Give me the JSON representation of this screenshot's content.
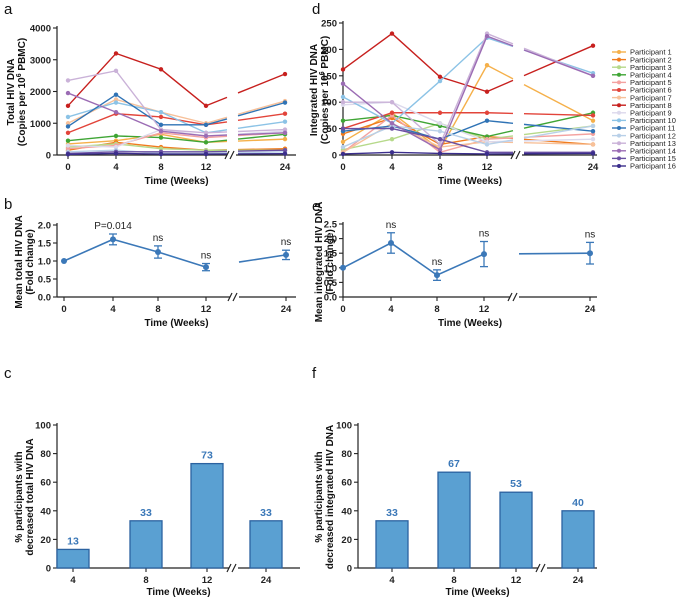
{
  "chart_data": [
    {
      "panel": "a",
      "type": "line",
      "xlabel": "Time (Weeks)",
      "ylabel_lines": [
        "Total HIV DNA",
        "(Copies per 10",
        "6",
        " PBMC)"
      ],
      "x": [
        0,
        4,
        8,
        12,
        24
      ],
      "ylim": [
        0,
        4000
      ],
      "yticks": [
        "0",
        "1000",
        "2000",
        "3000",
        "4000"
      ],
      "xticks": [
        "0",
        "4",
        "8",
        "12",
        "24"
      ],
      "series": [
        {
          "name": "Participant 1",
          "values": [
            350,
            450,
            650,
            400,
            500
          ]
        },
        {
          "name": "Participant 2",
          "values": [
            150,
            400,
            250,
            150,
            200
          ]
        },
        {
          "name": "Participant 3",
          "values": [
            250,
            350,
            200,
            150,
            150
          ]
        },
        {
          "name": "Participant 4",
          "values": [
            450,
            600,
            550,
            400,
            650
          ]
        },
        {
          "name": "Participant 5",
          "values": [
            200,
            300,
            700,
            550,
            700
          ]
        },
        {
          "name": "Participant 6",
          "values": [
            700,
            1300,
            1200,
            950,
            1300
          ]
        },
        {
          "name": "Participant 7",
          "values": [
            1000,
            1750,
            1350,
            1000,
            1700
          ]
        },
        {
          "name": "Participant 8",
          "values": [
            1550,
            3200,
            2700,
            1550,
            2550
          ]
        },
        {
          "name": "Participant 9",
          "values": [
            300,
            250,
            800,
            600,
            750
          ]
        },
        {
          "name": "Participant 10",
          "values": [
            1200,
            1650,
            1350,
            700,
            1050
          ]
        },
        {
          "name": "Participant 11",
          "values": [
            900,
            1900,
            950,
            950,
            1650
          ]
        },
        {
          "name": "Participant 12",
          "values": [
            100,
            150,
            50,
            50,
            100
          ]
        },
        {
          "name": "Participant 13",
          "values": [
            2350,
            2650,
            800,
            700,
            800
          ]
        },
        {
          "name": "Participant 14",
          "values": [
            1950,
            1350,
            750,
            600,
            700
          ]
        },
        {
          "name": "Participant 15",
          "values": [
            50,
            100,
            100,
            100,
            150
          ]
        },
        {
          "name": "Participant 16",
          "values": [
            20,
            50,
            30,
            30,
            40
          ]
        }
      ]
    },
    {
      "panel": "d",
      "type": "line",
      "xlabel": "Time (Weeks)",
      "ylabel_lines": [
        "Integrated HIV DNA",
        "(Copies per 10",
        "6",
        " PBMC)"
      ],
      "x": [
        0,
        4,
        8,
        12,
        24
      ],
      "ylim": [
        0,
        250
      ],
      "yticks": [
        "0",
        "50",
        "100",
        "150",
        "200",
        "250"
      ],
      "xticks": [
        "0",
        "4",
        "8",
        "12",
        "24"
      ],
      "series": [
        {
          "name": "Participant 1",
          "values": [
            25,
            80,
            10,
            170,
            65
          ]
        },
        {
          "name": "Participant 2",
          "values": [
            40,
            70,
            20,
            35,
            20
          ]
        },
        {
          "name": "Participant 3",
          "values": [
            10,
            30,
            60,
            30,
            55
          ]
        },
        {
          "name": "Participant 4",
          "values": [
            65,
            75,
            55,
            35,
            80
          ]
        },
        {
          "name": "Participant 5",
          "values": [
            5,
            75,
            5,
            30,
            40
          ]
        },
        {
          "name": "Participant 6",
          "values": [
            50,
            80,
            80,
            80,
            75
          ]
        },
        {
          "name": "Participant 7",
          "values": [
            5,
            60,
            15,
            25,
            20
          ]
        },
        {
          "name": "Participant 8",
          "values": [
            162,
            230,
            148,
            120,
            207
          ]
        },
        {
          "name": "Participant 9",
          "values": [
            95,
            100,
            60,
            25,
            30
          ]
        },
        {
          "name": "Participant 10",
          "values": [
            110,
            60,
            140,
            222,
            155
          ]
        },
        {
          "name": "Participant 11",
          "values": [
            45,
            55,
            30,
            65,
            45
          ]
        },
        {
          "name": "Participant 12",
          "values": [
            15,
            55,
            45,
            20,
            55
          ]
        },
        {
          "name": "Participant 13",
          "values": [
            100,
            100,
            20,
            230,
            150
          ]
        },
        {
          "name": "Participant 14",
          "values": [
            135,
            60,
            10,
            225,
            150
          ]
        },
        {
          "name": "Participant 15",
          "values": [
            50,
            50,
            30,
            5,
            5
          ]
        },
        {
          "name": "Participant 16",
          "values": [
            2,
            5,
            3,
            2,
            3
          ]
        }
      ]
    },
    {
      "panel": "b",
      "type": "line",
      "xlabel": "Time (Weeks)",
      "ylabel_lines": [
        "Mean total HIV DNA",
        "(Fold change)"
      ],
      "x": [
        0,
        4,
        8,
        12,
        24
      ],
      "ylim": [
        0,
        2.0
      ],
      "yticks": [
        "0.0",
        "0.5",
        "1.0",
        "1.5",
        "2.0"
      ],
      "xticks": [
        "0",
        "4",
        "8",
        "12",
        "24"
      ],
      "values": [
        1.0,
        1.6,
        1.25,
        0.83,
        1.17
      ],
      "err": [
        0,
        0.15,
        0.17,
        0.1,
        0.13
      ],
      "labels": [
        "",
        "P=0.014",
        "ns",
        "ns",
        "ns"
      ]
    },
    {
      "panel": "e",
      "type": "line",
      "xlabel": "Time (Weeks)",
      "ylabel_lines": [
        "Mean integrated HIV DNA",
        "(Fold change)"
      ],
      "x": [
        0,
        4,
        8,
        12,
        24
      ],
      "ylim": [
        0,
        2.5
      ],
      "yticks": [
        "0.0",
        "0.5",
        "1.0",
        "1.5",
        "2.0",
        "2.5"
      ],
      "xticks": [
        "0",
        "4",
        "8",
        "12",
        "24"
      ],
      "values": [
        1.0,
        1.85,
        0.75,
        1.47,
        1.5
      ],
      "err": [
        0,
        0.35,
        0.18,
        0.43,
        0.37
      ],
      "labels": [
        "",
        "ns",
        "ns",
        "ns",
        "ns"
      ]
    },
    {
      "panel": "c",
      "type": "bar",
      "xlabel": "Time (Weeks)",
      "ylabel_lines": [
        "% participants with",
        "decreased total HIV DNA"
      ],
      "categories": [
        "4",
        "8",
        "12",
        "24"
      ],
      "values": [
        13,
        33,
        73,
        33
      ],
      "ylim": [
        0,
        100
      ],
      "yticks": [
        "0",
        "20",
        "40",
        "60",
        "80",
        "100"
      ]
    },
    {
      "panel": "f",
      "type": "bar",
      "xlabel": "Time (Weeks)",
      "ylabel_lines": [
        "% participants with",
        "decreased integrated HIV DNA"
      ],
      "categories": [
        "4",
        "8",
        "12",
        "24"
      ],
      "values": [
        33,
        67,
        53,
        40
      ],
      "ylim": [
        0,
        100
      ],
      "yticks": [
        "0",
        "20",
        "40",
        "60",
        "80",
        "100"
      ]
    }
  ],
  "colors": [
    "#f5b04a",
    "#f07c1e",
    "#b6d98a",
    "#3fa535",
    "#f4a2a0",
    "#e2443a",
    "#f7c19a",
    "#c7201e",
    "#dcd9ec",
    "#8cc3e6",
    "#2f73b5",
    "#b8d0e8",
    "#cab2d8",
    "#9b6cb4",
    "#6a50a2",
    "#3b2e8c"
  ],
  "bar_color": "#5aa0d2",
  "accent_color": "#3b78b8",
  "line_color_red": "#d93a2b"
}
